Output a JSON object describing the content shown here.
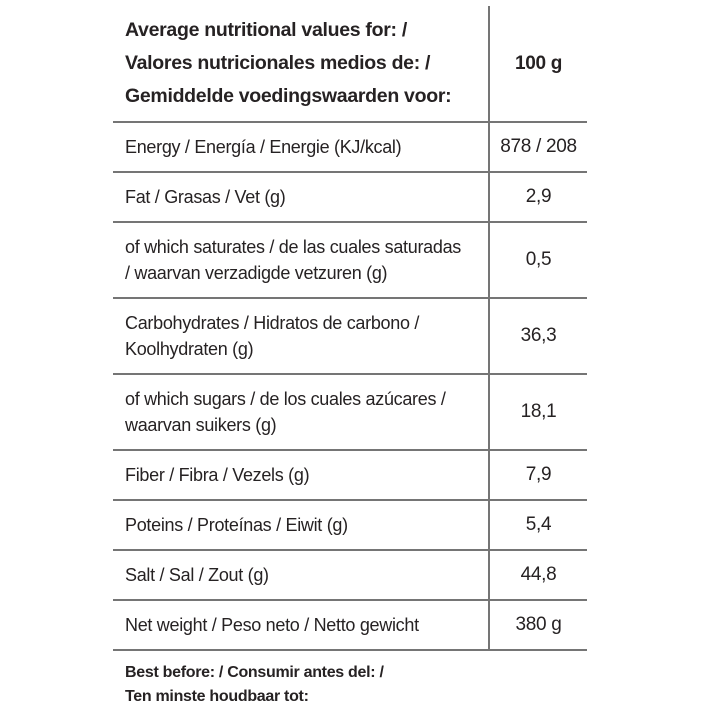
{
  "label": {
    "title": "nutrition-facts-table",
    "colors": {
      "text": "#262223",
      "rule_lines": "#757575",
      "background": "#ffffff"
    },
    "header": {
      "label": "Average nutritional values for: /\nValores nutricionales medios de: /\nGemiddelde voedingswaarden voor:",
      "value": "100 g"
    },
    "rows": [
      {
        "label": "Energy / Energía / Energie (KJ/kcal)",
        "value": "878 / 208"
      },
      {
        "label": "Fat / Grasas / Vet (g)",
        "value": "2,9"
      },
      {
        "label": "of which saturates / de las cuales saturadas\n/ waarvan verzadigde vetzuren (g)",
        "value": "0,5"
      },
      {
        "label": "Carbohydrates / Hidratos de carbono /\nKoolhydraten (g)",
        "value": "36,3"
      },
      {
        "label": "of which sugars  / de los cuales azúcares /\nwaarvan suikers (g)",
        "value": "18,1"
      },
      {
        "label": "Fiber / Fibra / Vezels (g)",
        "value": "7,9"
      },
      {
        "label": "Poteins / Proteínas / Eiwit (g)",
        "value": "5,4"
      },
      {
        "label": "Salt / Sal / Zout (g)",
        "value": "44,8"
      },
      {
        "label": "Net weight / Peso neto / Netto gewicht",
        "value": "380 g"
      }
    ],
    "footer": "Best before: / Consumir antes del: /\nTen minste houdbaar tot:"
  }
}
